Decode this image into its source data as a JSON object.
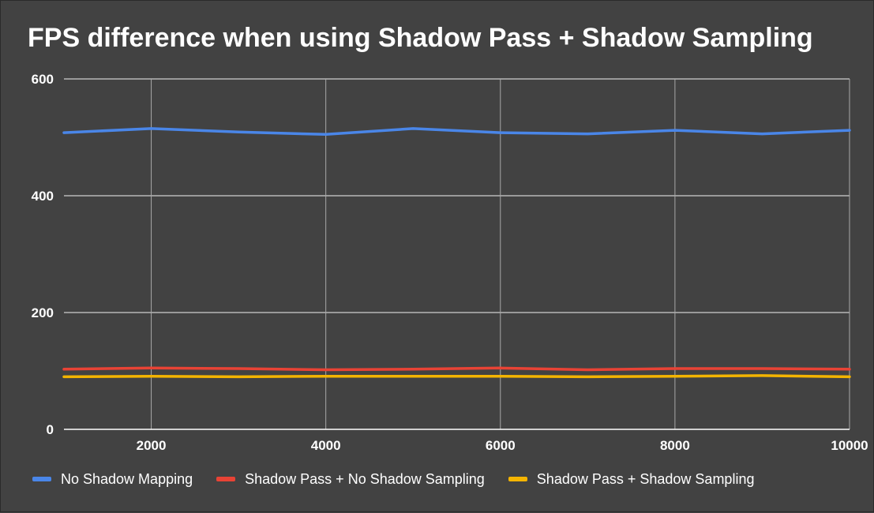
{
  "chart_data": {
    "type": "line",
    "title": "FPS difference when using Shadow Pass + Shadow Sampling",
    "xlabel": "",
    "ylabel": "",
    "x": [
      1000,
      2000,
      3000,
      4000,
      5000,
      6000,
      7000,
      8000,
      9000,
      10000
    ],
    "xlim": [
      1000,
      10000
    ],
    "ylim": [
      0,
      600
    ],
    "xticks": [
      2000,
      4000,
      6000,
      8000,
      10000
    ],
    "yticks": [
      0,
      200,
      400,
      600
    ],
    "grid": true,
    "legend_position": "bottom",
    "series": [
      {
        "name": "No Shadow Mapping",
        "color": "#4a86e8",
        "values": [
          508,
          515,
          509,
          505,
          515,
          508,
          506,
          512,
          506,
          512
        ]
      },
      {
        "name": "Shadow Pass + No Shadow Sampling",
        "color": "#e84335",
        "values": [
          103,
          105,
          104,
          102,
          103,
          105,
          102,
          104,
          104,
          103
        ]
      },
      {
        "name": "Shadow Pass + Shadow Sampling",
        "color": "#f4b400",
        "values": [
          90,
          91,
          90,
          91,
          91,
          91,
          90,
          91,
          92,
          90
        ]
      }
    ]
  }
}
